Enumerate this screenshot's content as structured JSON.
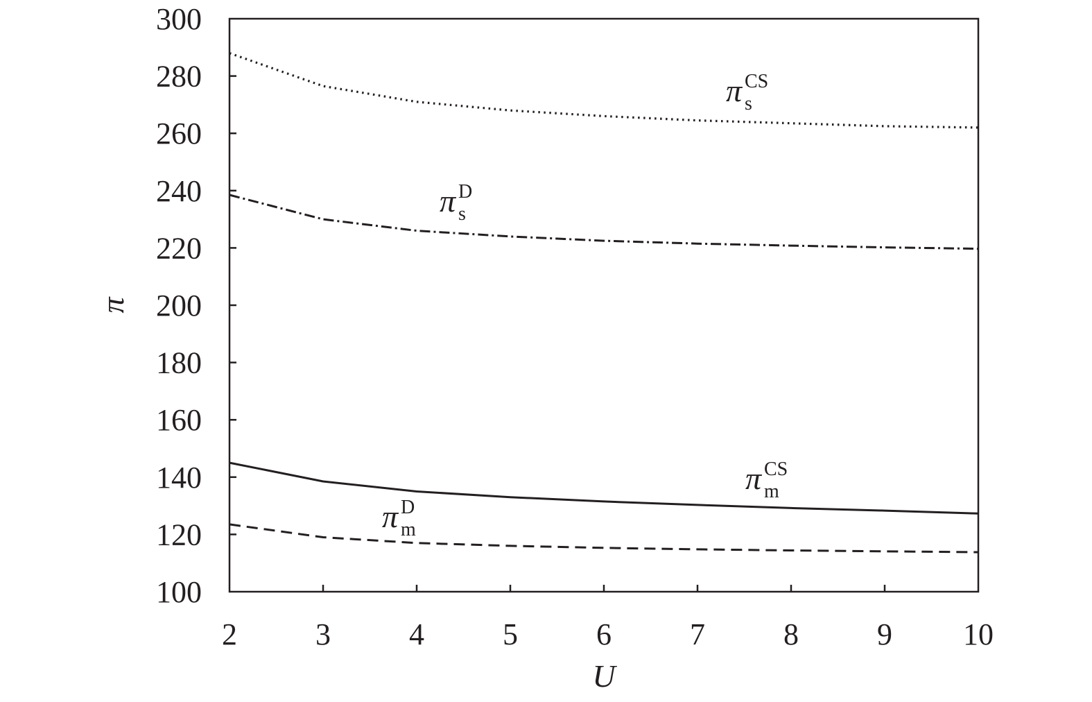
{
  "chart_data": {
    "type": "line",
    "xlabel": "U",
    "ylabel": "π",
    "xlim": [
      2,
      10
    ],
    "ylim": [
      100,
      300
    ],
    "xticks": [
      2,
      3,
      4,
      5,
      6,
      7,
      8,
      9,
      10
    ],
    "yticks": [
      100,
      120,
      140,
      160,
      180,
      200,
      220,
      240,
      260,
      280,
      300
    ],
    "grid": false,
    "x": [
      2,
      3,
      4,
      5,
      6,
      7,
      8,
      9,
      10
    ],
    "series": [
      {
        "name": "π s CS",
        "label": {
          "symbol": "π",
          "sub": "s",
          "sup": "CS"
        },
        "dash": "dotted",
        "values": [
          288,
          276.5,
          271,
          268,
          266,
          264.5,
          263.5,
          262.5,
          262
        ]
      },
      {
        "name": "π s D",
        "label": {
          "symbol": "π",
          "sub": "s",
          "sup": "D"
        },
        "dash": "dashdot",
        "values": [
          238.5,
          230,
          226,
          224,
          222.5,
          221.5,
          220.8,
          220.2,
          219.7
        ]
      },
      {
        "name": "π m CS",
        "label": {
          "symbol": "π",
          "sub": "m",
          "sup": "CS"
        },
        "dash": "solid",
        "values": [
          145,
          138.5,
          135,
          133,
          131.5,
          130.3,
          129.2,
          128.3,
          127.3
        ]
      },
      {
        "name": "π m D",
        "label": {
          "symbol": "π",
          "sub": "m",
          "sup": "D"
        },
        "dash": "dashed",
        "values": [
          123.5,
          119,
          117,
          116,
          115.3,
          114.8,
          114.4,
          114.1,
          113.8
        ]
      }
    ]
  }
}
